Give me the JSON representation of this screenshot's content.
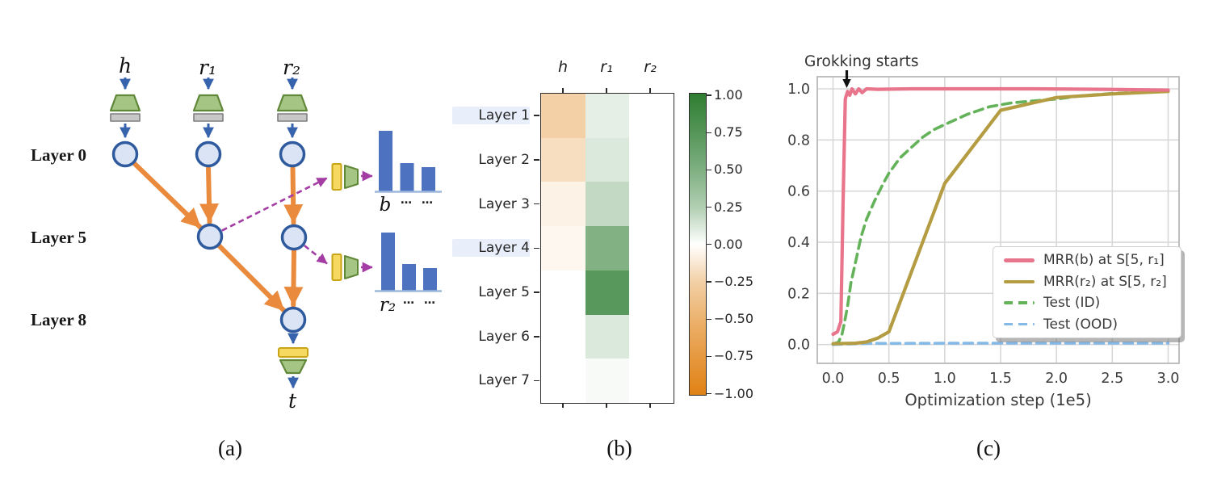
{
  "palette": {
    "node_fill": "#dbe4f4",
    "node_border": "#2f5b9e",
    "embed_fill": "#a5c585",
    "embed_border": "#5f8838",
    "gray_fill": "#c8c8c8",
    "gray_border": "#7f7f7f",
    "yellow_fill": "#f6d960",
    "yellow_border": "#c9a417",
    "orange_arrow": "#e98a3c",
    "purple_arrow": "#a33da3",
    "blue_arrow": "#3763ad",
    "bar_blue": "#4d72c0",
    "baseline_blue": "#9db8dd",
    "heat_positive": "#2e7d32",
    "heat_negative": "#e08214",
    "grid": "#d8d8d8",
    "spine": "#b8b8b8",
    "pink": "#e8758b",
    "olive": "#b39c42",
    "green": "#64b25a",
    "light_blue": "#85b9e6"
  },
  "panel_a": {
    "caption": "(a)",
    "input_labels": [
      "h",
      "r₁",
      "r₂"
    ],
    "layer_labels": [
      "Layer 0",
      "Layer 5",
      "Layer 8"
    ],
    "output_label": "t",
    "dist_b": {
      "label": "b",
      "dots": [
        "…",
        "…"
      ],
      "bar_heights": [
        75,
        35,
        30
      ]
    },
    "dist_r2": {
      "label": "r₂",
      "dots": [
        "…",
        "…"
      ],
      "bar_heights": [
        72,
        33,
        28
      ]
    }
  },
  "panel_b": {
    "caption": "(b)"
  },
  "panel_c": {
    "caption": "(c)",
    "annotation": "Grokking starts",
    "xlabel": "Optimization step (1e5)"
  },
  "chart_data": [
    {
      "id": "layer_attribution_heatmap",
      "type": "heatmap",
      "columns": [
        "h",
        "r₁",
        "r₂"
      ],
      "rows": [
        "Layer 1",
        "Layer 2",
        "Layer 3",
        "Layer 4",
        "Layer 5",
        "Layer 6",
        "Layer 7"
      ],
      "highlighted_rows": [
        "Layer 1",
        "Layer 4"
      ],
      "values": [
        [
          -0.25,
          0.05,
          0.0
        ],
        [
          -0.15,
          0.08,
          0.0
        ],
        [
          -0.04,
          0.17,
          0.0
        ],
        [
          -0.02,
          0.48,
          0.0
        ],
        [
          0.0,
          0.72,
          0.0
        ],
        [
          0.0,
          0.08,
          0.0
        ],
        [
          0.0,
          0.01,
          0.0
        ]
      ],
      "vmin": -1.0,
      "vmax": 1.0,
      "colorbar_ticks": [
        "1.00",
        "0.75",
        "0.50",
        "0.25",
        "0.00",
        "−0.25",
        "−0.50",
        "−0.75",
        "−1.00"
      ]
    },
    {
      "id": "grokking_curves",
      "type": "line",
      "xlabel": "Optimization step (1e5)",
      "xticks": [
        0.0,
        0.5,
        1.0,
        1.5,
        2.0,
        2.5,
        3.0
      ],
      "yticks": [
        0.0,
        0.2,
        0.4,
        0.6,
        0.8,
        1.0
      ],
      "xlim": [
        -0.15,
        3.1
      ],
      "ylim": [
        -0.05,
        1.07
      ],
      "grid": true,
      "legend_position": "lower right",
      "annotation": {
        "text": "Grokking starts",
        "arrow_x": 0.12
      },
      "series": [
        {
          "name": "MRR(b) at S[5, r₁]",
          "color": "#e8758b",
          "style": "solid",
          "points": [
            [
              0,
              0.04
            ],
            [
              0.04,
              0.05
            ],
            [
              0.07,
              0.09
            ],
            [
              0.09,
              0.55
            ],
            [
              0.11,
              0.96
            ],
            [
              0.13,
              0.99
            ],
            [
              0.15,
              0.975
            ],
            [
              0.17,
              1.0
            ],
            [
              0.2,
              0.98
            ],
            [
              0.23,
              1.0
            ],
            [
              0.26,
              0.985
            ],
            [
              0.3,
              1.0
            ],
            [
              0.4,
              0.998
            ],
            [
              0.7,
              1.0
            ],
            [
              1.2,
              1.0
            ],
            [
              1.8,
              1.0
            ],
            [
              2.4,
              0.998
            ],
            [
              3.0,
              0.995
            ]
          ]
        },
        {
          "name": "MRR(r₂) at S[5, r₂]",
          "color": "#b39c42",
          "style": "solid",
          "points": [
            [
              0,
              0.003
            ],
            [
              0.2,
              0.005
            ],
            [
              0.3,
              0.01
            ],
            [
              0.4,
              0.025
            ],
            [
              0.5,
              0.05
            ],
            [
              1.0,
              0.63
            ],
            [
              1.5,
              0.916
            ],
            [
              2.0,
              0.966
            ],
            [
              2.5,
              0.98
            ],
            [
              3.0,
              0.99
            ]
          ]
        },
        {
          "name": "Test (ID)",
          "color": "#64b25a",
          "style": "dashed",
          "points": [
            [
              0,
              0.002
            ],
            [
              0.05,
              0.01
            ],
            [
              0.08,
              0.04
            ],
            [
              0.1,
              0.08
            ],
            [
              0.13,
              0.15
            ],
            [
              0.16,
              0.24
            ],
            [
              0.2,
              0.32
            ],
            [
              0.25,
              0.42
            ],
            [
              0.3,
              0.49
            ],
            [
              0.37,
              0.56
            ],
            [
              0.45,
              0.63
            ],
            [
              0.5,
              0.67
            ],
            [
              0.6,
              0.73
            ],
            [
              0.7,
              0.77
            ],
            [
              0.8,
              0.81
            ],
            [
              0.9,
              0.84
            ],
            [
              1.0,
              0.86
            ],
            [
              1.2,
              0.9
            ],
            [
              1.4,
              0.93
            ],
            [
              1.6,
              0.945
            ],
            [
              1.8,
              0.953
            ],
            [
              2.0,
              0.96
            ],
            [
              2.2,
              0.972
            ],
            [
              2.5,
              0.982
            ],
            [
              2.8,
              0.988
            ],
            [
              3.0,
              0.992
            ]
          ]
        },
        {
          "name": "Test (OOD)",
          "color": "#85b9e6",
          "style": "dashed",
          "points": [
            [
              0,
              0.0
            ],
            [
              0.3,
              0.004
            ],
            [
              1.0,
              0.005
            ],
            [
              2.0,
              0.005
            ],
            [
              3.0,
              0.005
            ]
          ]
        }
      ]
    }
  ]
}
